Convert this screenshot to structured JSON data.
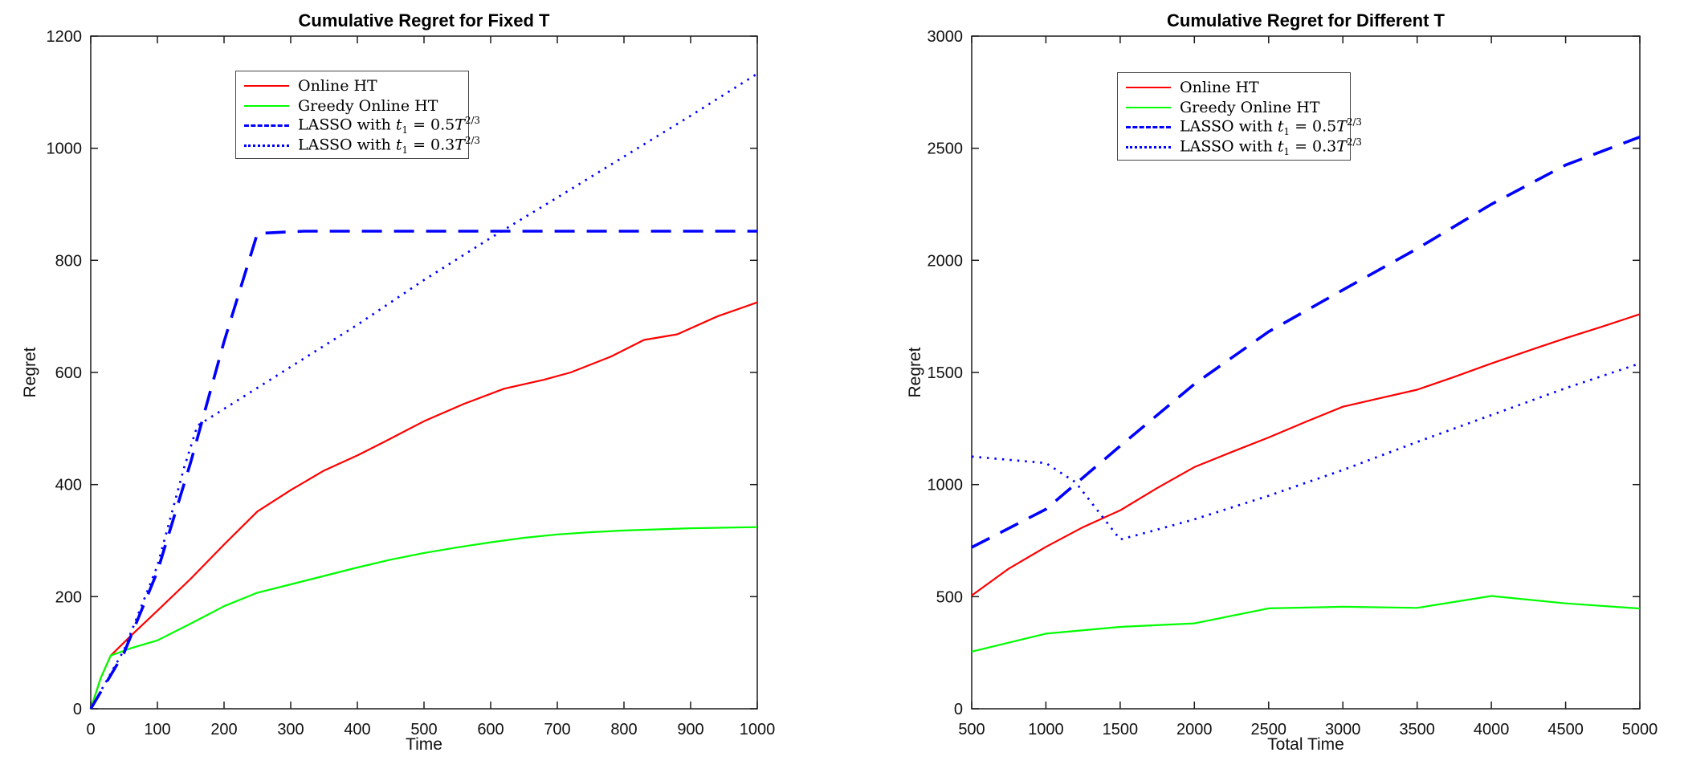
{
  "figure": {
    "background": "#ffffff",
    "axis_color": "#1a1a1a",
    "tick_label_color": "#111111"
  },
  "chart_data": [
    {
      "type": "line",
      "title": "Cumulative Regret for Fixed T",
      "xlabel": "Time",
      "ylabel": "Regret",
      "xlim": [
        0,
        1000
      ],
      "ylim": [
        0,
        1200
      ],
      "xticks": [
        0,
        100,
        200,
        300,
        400,
        500,
        600,
        700,
        800,
        900,
        1000
      ],
      "yticks": [
        0,
        200,
        400,
        600,
        800,
        1000,
        1200
      ],
      "grid": false,
      "legend_position": "upper-left-inset",
      "series": [
        {
          "name": "Online HT",
          "color": "#ff0000",
          "linestyle": "solid",
          "label_rich": [
            {
              "t": "Online HT"
            }
          ],
          "x": [
            0,
            15,
            30,
            60,
            100,
            150,
            200,
            250,
            300,
            350,
            400,
            440,
            500,
            560,
            620,
            680,
            720,
            780,
            830,
            880,
            940,
            1000
          ],
          "y": [
            0,
            55,
            95,
            130,
            175,
            232,
            293,
            352,
            390,
            425,
            452,
            476,
            513,
            544,
            571,
            587,
            600,
            628,
            658,
            668,
            700,
            725
          ]
        },
        {
          "name": "Greedy Online HT",
          "color": "#00ff00",
          "linestyle": "solid",
          "label_rich": [
            {
              "t": "Greedy Online HT"
            }
          ],
          "x": [
            0,
            15,
            30,
            60,
            100,
            150,
            200,
            250,
            300,
            350,
            400,
            450,
            500,
            550,
            600,
            650,
            700,
            750,
            800,
            850,
            900,
            950,
            1000
          ],
          "y": [
            0,
            55,
            95,
            108,
            122,
            152,
            183,
            207,
            222,
            237,
            252,
            266,
            278,
            288,
            297,
            305,
            311,
            315,
            318,
            320,
            322,
            323,
            324
          ]
        },
        {
          "name": "LASSO with t1 = 0.5T^(2/3)",
          "color": "#0000ff",
          "linestyle": "dashed",
          "label_rich": [
            {
              "t": "LASSO with "
            },
            {
              "t": "t",
              "s": "i"
            },
            {
              "t": "1",
              "s": "sub"
            },
            {
              "t": " = 0.5"
            },
            {
              "t": "T",
              "s": "i"
            },
            {
              "t": "2/3",
              "s": "sup"
            }
          ],
          "x": [
            0,
            50,
            100,
            150,
            200,
            250,
            320,
            1000
          ],
          "y": [
            0,
            100,
            245,
            440,
            655,
            848,
            852,
            852
          ]
        },
        {
          "name": "LASSO with t1 = 0.3T^(2/3)",
          "color": "#0000ff",
          "linestyle": "dotted",
          "label_rich": [
            {
              "t": "LASSO with "
            },
            {
              "t": "t",
              "s": "i"
            },
            {
              "t": "1",
              "s": "sub"
            },
            {
              "t": " = 0.3"
            },
            {
              "t": "T",
              "s": "i"
            },
            {
              "t": "2/3",
              "s": "sup"
            }
          ],
          "x": [
            0,
            50,
            100,
            140,
            160,
            200,
            300,
            400,
            500,
            600,
            700,
            800,
            900,
            1000
          ],
          "y": [
            0,
            105,
            255,
            430,
            505,
            535,
            610,
            685,
            765,
            840,
            912,
            985,
            1058,
            1133
          ]
        }
      ]
    },
    {
      "type": "line",
      "title": "Cumulative Regret for Different T",
      "xlabel": "Total Time",
      "ylabel": "Regret",
      "xlim": [
        500,
        5000
      ],
      "ylim": [
        0,
        3000
      ],
      "xticks": [
        500,
        1000,
        1500,
        2000,
        2500,
        3000,
        3500,
        4000,
        4500,
        5000
      ],
      "yticks": [
        0,
        500,
        1000,
        1500,
        2000,
        2500,
        3000
      ],
      "grid": false,
      "legend_position": "upper-left-inset",
      "series": [
        {
          "name": "Online HT",
          "color": "#ff0000",
          "linestyle": "solid",
          "label_rich": [
            {
              "t": "Online HT"
            }
          ],
          "x": [
            500,
            750,
            1000,
            1250,
            1500,
            1750,
            2000,
            2250,
            2500,
            2750,
            3000,
            3250,
            3500,
            3750,
            4000,
            4250,
            4500,
            4750,
            5000
          ],
          "y": [
            505,
            625,
            722,
            810,
            885,
            985,
            1078,
            1145,
            1210,
            1280,
            1347,
            1385,
            1423,
            1480,
            1540,
            1597,
            1653,
            1705,
            1760
          ]
        },
        {
          "name": "Greedy Online HT",
          "color": "#00ff00",
          "linestyle": "solid",
          "label_rich": [
            {
              "t": "Greedy Online HT"
            }
          ],
          "x": [
            500,
            1000,
            1500,
            2000,
            2500,
            3000,
            3500,
            4000,
            4500,
            5000
          ],
          "y": [
            255,
            335,
            365,
            381,
            448,
            455,
            450,
            503,
            470,
            447
          ]
        },
        {
          "name": "LASSO with t1 = 0.5T^(2/3)",
          "color": "#0000ff",
          "linestyle": "dashed",
          "label_rich": [
            {
              "t": "LASSO with "
            },
            {
              "t": "t",
              "s": "i"
            },
            {
              "t": "1",
              "s": "sub"
            },
            {
              "t": " = 0.5"
            },
            {
              "t": "T",
              "s": "i"
            },
            {
              "t": "2/3",
              "s": "sup"
            }
          ],
          "x": [
            500,
            1000,
            1500,
            2000,
            2500,
            3000,
            3500,
            4000,
            4500,
            5000
          ],
          "y": [
            720,
            890,
            1172,
            1448,
            1682,
            1868,
            2052,
            2250,
            2425,
            2550
          ]
        },
        {
          "name": "LASSO with t1 = 0.3T^(2/3)",
          "color": "#0000ff",
          "linestyle": "dotted",
          "label_rich": [
            {
              "t": "LASSO with "
            },
            {
              "t": "t",
              "s": "i"
            },
            {
              "t": "1",
              "s": "sub"
            },
            {
              "t": " = 0.3"
            },
            {
              "t": "T",
              "s": "i"
            },
            {
              "t": "2/3",
              "s": "sup"
            }
          ],
          "x": [
            500,
            1000,
            1200,
            1500,
            1700,
            2000,
            2500,
            3000,
            3500,
            4000,
            4500,
            5000
          ],
          "y": [
            1125,
            1096,
            1010,
            755,
            790,
            845,
            950,
            1065,
            1190,
            1310,
            1430,
            1540
          ]
        }
      ]
    }
  ]
}
